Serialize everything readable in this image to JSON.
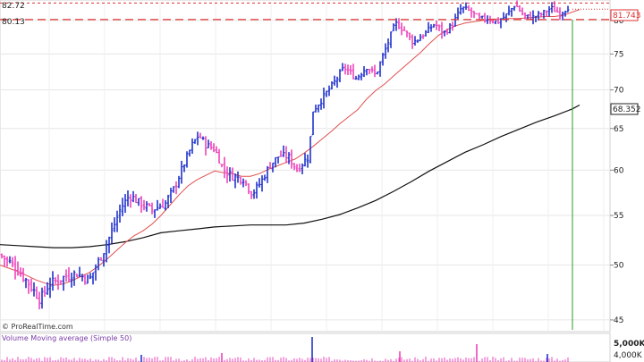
{
  "chart_data": {
    "type": "line",
    "watermark": "© ProRealTime.com",
    "price_axis": {
      "ylim": [
        44,
        83.2
      ],
      "ticks": [
        45,
        50,
        55,
        60,
        65,
        70,
        75,
        80
      ]
    },
    "markers": {
      "upper_value": "82.72",
      "lower_value": "80.13",
      "last_price": "81.743",
      "ma200_value": "68.352"
    },
    "moving_average_50": [
      [
        0,
        50.0
      ],
      [
        10,
        49.7
      ],
      [
        20,
        49.4
      ],
      [
        30,
        49.0
      ],
      [
        40,
        48.6
      ],
      [
        50,
        48.3
      ],
      [
        60,
        48.1
      ],
      [
        70,
        48.2
      ],
      [
        80,
        48.5
      ],
      [
        90,
        48.9
      ],
      [
        100,
        49.3
      ],
      [
        110,
        49.9
      ],
      [
        120,
        50.6
      ],
      [
        130,
        51.4
      ],
      [
        140,
        52.2
      ],
      [
        150,
        52.9
      ],
      [
        160,
        53.4
      ],
      [
        170,
        54.1
      ],
      [
        180,
        55.0
      ],
      [
        190,
        56.1
      ],
      [
        200,
        57.2
      ],
      [
        210,
        58.2
      ],
      [
        220,
        58.9
      ],
      [
        230,
        59.4
      ],
      [
        240,
        59.9
      ],
      [
        250,
        59.7
      ],
      [
        260,
        59.6
      ],
      [
        270,
        59.3
      ],
      [
        280,
        59.3
      ],
      [
        290,
        59.6
      ],
      [
        300,
        60.1
      ],
      [
        310,
        60.5
      ],
      [
        320,
        60.9
      ],
      [
        330,
        61.3
      ],
      [
        340,
        62.0
      ],
      [
        350,
        62.8
      ],
      [
        360,
        63.7
      ],
      [
        370,
        64.6
      ],
      [
        380,
        65.6
      ],
      [
        390,
        66.5
      ],
      [
        400,
        67.4
      ],
      [
        410,
        68.8
      ],
      [
        420,
        69.9
      ],
      [
        430,
        70.8
      ],
      [
        440,
        71.9
      ],
      [
        450,
        73.0
      ],
      [
        460,
        74.1
      ],
      [
        470,
        75.2
      ],
      [
        480,
        76.5
      ],
      [
        490,
        77.7
      ],
      [
        500,
        78.6
      ],
      [
        510,
        79.2
      ],
      [
        520,
        79.6
      ],
      [
        530,
        79.8
      ],
      [
        540,
        80.0
      ],
      [
        550,
        80.2
      ],
      [
        560,
        80.2
      ],
      [
        570,
        80.3
      ],
      [
        580,
        80.3
      ],
      [
        590,
        80.4
      ],
      [
        600,
        80.5
      ],
      [
        610,
        80.6
      ],
      [
        620,
        80.6
      ],
      [
        630,
        80.8
      ],
      [
        640,
        81.3
      ],
      [
        648,
        81.7
      ]
    ],
    "moving_average_200": [
      [
        0,
        52.0
      ],
      [
        20,
        51.9
      ],
      [
        40,
        51.8
      ],
      [
        60,
        51.7
      ],
      [
        80,
        51.7
      ],
      [
        100,
        51.8
      ],
      [
        120,
        52.0
      ],
      [
        140,
        52.3
      ],
      [
        160,
        52.7
      ],
      [
        180,
        53.2
      ],
      [
        200,
        53.4
      ],
      [
        220,
        53.6
      ],
      [
        240,
        53.8
      ],
      [
        260,
        53.9
      ],
      [
        280,
        54.0
      ],
      [
        300,
        54.0
      ],
      [
        320,
        54.0
      ],
      [
        340,
        54.2
      ],
      [
        360,
        54.6
      ],
      [
        380,
        55.1
      ],
      [
        400,
        55.8
      ],
      [
        420,
        56.6
      ],
      [
        440,
        57.6
      ],
      [
        460,
        58.7
      ],
      [
        480,
        59.9
      ],
      [
        500,
        61.0
      ],
      [
        520,
        62.1
      ],
      [
        540,
        63.0
      ],
      [
        560,
        64.0
      ],
      [
        580,
        64.9
      ],
      [
        600,
        65.8
      ],
      [
        620,
        66.6
      ],
      [
        640,
        67.5
      ],
      [
        648,
        68.0
      ]
    ],
    "price_path": [
      [
        0,
        51.0
      ],
      [
        15,
        50.0
      ],
      [
        30,
        48.5
      ],
      [
        45,
        46.8
      ],
      [
        55,
        48.2
      ],
      [
        70,
        48.8
      ],
      [
        85,
        49.2
      ],
      [
        100,
        48.6
      ],
      [
        115,
        51.2
      ],
      [
        125,
        53.3
      ],
      [
        135,
        55.8
      ],
      [
        145,
        57.2
      ],
      [
        155,
        56.4
      ],
      [
        170,
        55.6
      ],
      [
        185,
        56.3
      ],
      [
        195,
        58.0
      ],
      [
        205,
        60.5
      ],
      [
        215,
        63.0
      ],
      [
        222,
        64.2
      ],
      [
        230,
        63.0
      ],
      [
        240,
        62.5
      ],
      [
        250,
        60.0
      ],
      [
        260,
        59.3
      ],
      [
        272,
        59.0
      ],
      [
        282,
        57.3
      ],
      [
        292,
        58.7
      ],
      [
        302,
        60.6
      ],
      [
        312,
        61.7
      ],
      [
        322,
        61.6
      ],
      [
        332,
        60.1
      ],
      [
        345,
        61.6
      ],
      [
        350,
        67.3
      ],
      [
        360,
        68.8
      ],
      [
        372,
        70.7
      ],
      [
        385,
        73.1
      ],
      [
        398,
        71.6
      ],
      [
        410,
        73.2
      ],
      [
        420,
        72.0
      ],
      [
        432,
        76.0
      ],
      [
        442,
        79.6
      ],
      [
        452,
        78.5
      ],
      [
        462,
        76.7
      ],
      [
        474,
        77.9
      ],
      [
        486,
        79.5
      ],
      [
        496,
        78.0
      ],
      [
        506,
        79.4
      ],
      [
        516,
        82.0
      ],
      [
        526,
        81.4
      ],
      [
        536,
        80.2
      ],
      [
        546,
        80.3
      ],
      [
        556,
        79.7
      ],
      [
        566,
        80.8
      ],
      [
        576,
        82.5
      ],
      [
        586,
        80.6
      ],
      [
        596,
        80.5
      ],
      [
        606,
        81.0
      ],
      [
        616,
        81.9
      ],
      [
        626,
        81.1
      ],
      [
        636,
        82.2
      ]
    ],
    "volume": {
      "legend": "Volume  Moving average (Simple 50)",
      "ticks": [
        "5,000K",
        "4,000K"
      ]
    }
  }
}
